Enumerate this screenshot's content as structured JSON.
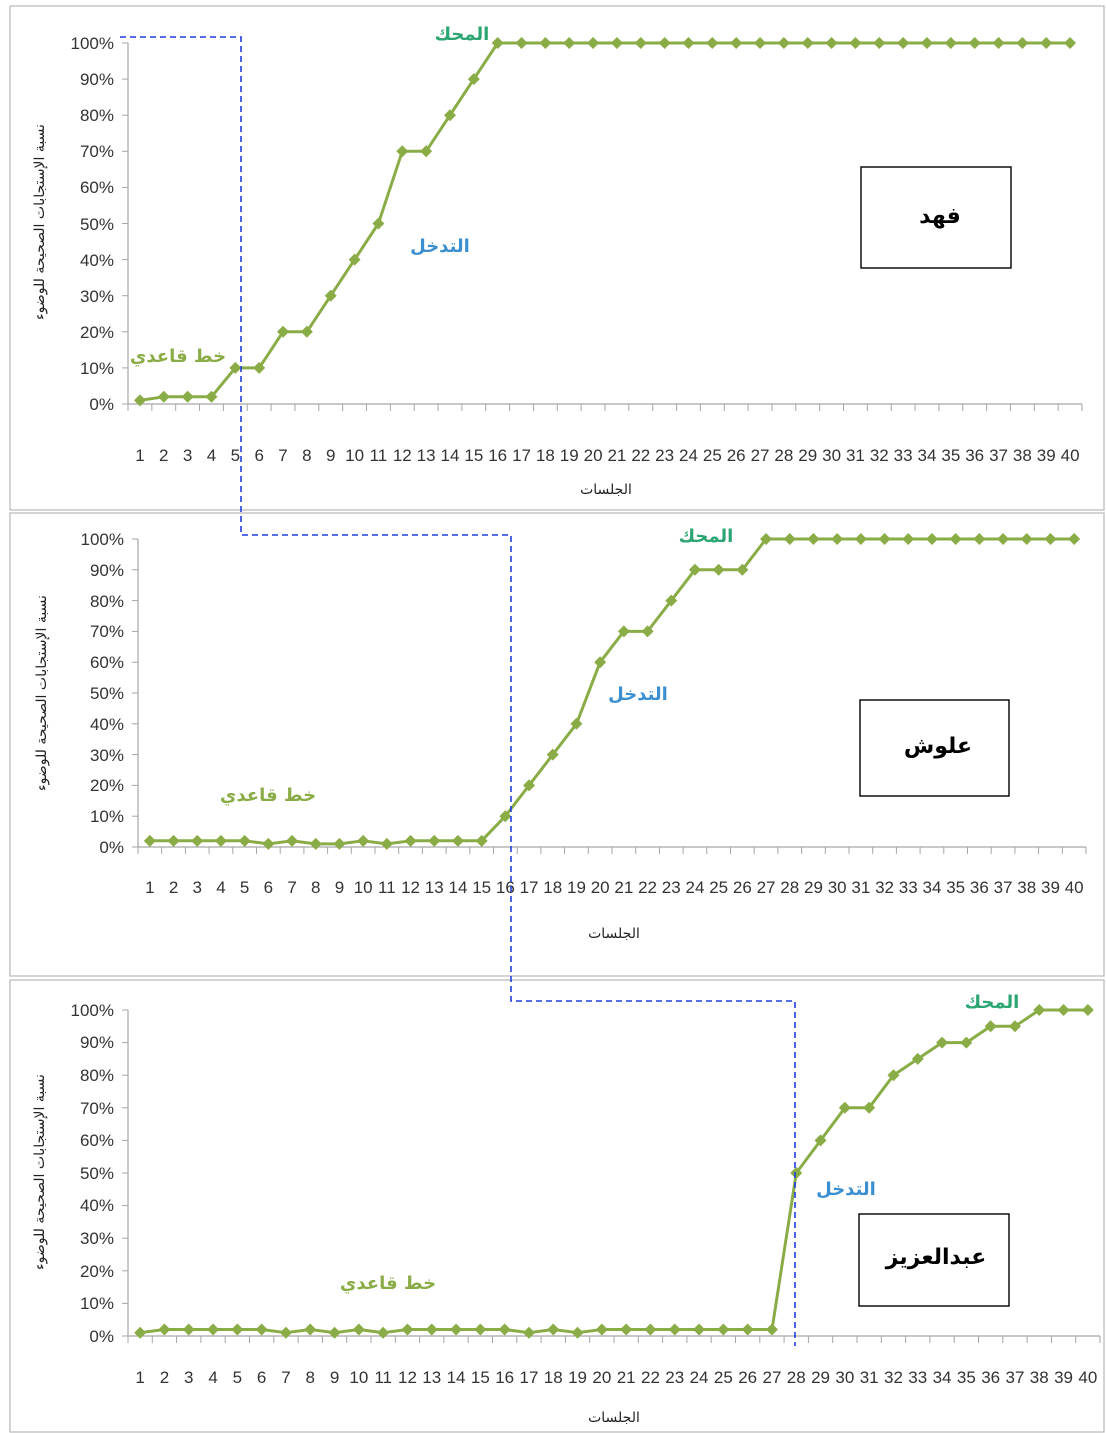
{
  "colors": {
    "series": "#8aac46",
    "phase_line": "#1f3fe0",
    "baseline_label": "#8aac46",
    "mastery_label": "#2ba672",
    "intervention_label": "#3b8fd0"
  },
  "chart_data": [
    {
      "type": "line",
      "name_box": "فهد",
      "ylabel": "نسبة الإستجابات الصحيحة للوضوء",
      "xlabel": "الجلسات",
      "ylim": [
        0,
        100
      ],
      "yticks": [
        "0%",
        "10%",
        "20%",
        "30%",
        "40%",
        "50%",
        "60%",
        "70%",
        "80%",
        "90%",
        "100%"
      ],
      "x": [
        1,
        2,
        3,
        4,
        5,
        6,
        7,
        8,
        9,
        10,
        11,
        12,
        13,
        14,
        15,
        16,
        17,
        18,
        19,
        20,
        21,
        22,
        23,
        24,
        25,
        26,
        27,
        28,
        29,
        30,
        31,
        32,
        33,
        34,
        35,
        36,
        37,
        38,
        39,
        40
      ],
      "values": [
        1,
        2,
        2,
        2,
        10,
        10,
        20,
        20,
        30,
        40,
        50,
        70,
        70,
        80,
        90,
        100,
        100,
        100,
        100,
        100,
        100,
        100,
        100,
        100,
        100,
        100,
        100,
        100,
        100,
        100,
        100,
        100,
        100,
        100,
        100,
        100,
        100,
        100,
        100,
        100
      ],
      "phase_labels": {
        "baseline": "خط قاعدي",
        "intervention": "التدخل",
        "mastery": "المحك"
      }
    },
    {
      "type": "line",
      "name_box": "علوش",
      "ylabel": "نسبة الإستجابات الصحيحة للوضوء",
      "xlabel": "الجلسات",
      "ylim": [
        0,
        100
      ],
      "yticks": [
        "0%",
        "10%",
        "20%",
        "30%",
        "40%",
        "50%",
        "60%",
        "70%",
        "80%",
        "90%",
        "100%"
      ],
      "x": [
        1,
        2,
        3,
        4,
        5,
        6,
        7,
        8,
        9,
        10,
        11,
        12,
        13,
        14,
        15,
        16,
        17,
        18,
        19,
        20,
        21,
        22,
        23,
        24,
        25,
        26,
        27,
        28,
        29,
        30,
        31,
        32,
        33,
        34,
        35,
        36,
        37,
        38,
        39,
        40
      ],
      "values": [
        2,
        2,
        2,
        2,
        2,
        1,
        2,
        1,
        1,
        2,
        1,
        2,
        2,
        2,
        2,
        10,
        20,
        30,
        40,
        60,
        70,
        70,
        80,
        90,
        90,
        90,
        100,
        100,
        100,
        100,
        100,
        100,
        100,
        100,
        100,
        100,
        100,
        100,
        100,
        100
      ],
      "phase_labels": {
        "baseline": "خط قاعدي",
        "intervention": "التدخل",
        "mastery": "المحك"
      }
    },
    {
      "type": "line",
      "name_box": "عبدالعزيز",
      "ylabel": "نسبة الإستجابات الصحيحة للوضوء",
      "xlabel": "الجلسات",
      "ylim": [
        0,
        100
      ],
      "yticks": [
        "0%",
        "10%",
        "20%",
        "30%",
        "40%",
        "50%",
        "60%",
        "70%",
        "80%",
        "90%",
        "100%"
      ],
      "x": [
        1,
        2,
        3,
        4,
        5,
        6,
        7,
        8,
        9,
        10,
        11,
        12,
        13,
        14,
        15,
        16,
        17,
        18,
        19,
        20,
        21,
        22,
        23,
        24,
        25,
        26,
        27,
        28,
        29,
        30,
        31,
        32,
        33,
        34,
        35,
        36,
        37,
        38,
        39,
        40
      ],
      "values": [
        1,
        2,
        2,
        2,
        2,
        2,
        1,
        2,
        1,
        2,
        1,
        2,
        2,
        2,
        2,
        2,
        1,
        2,
        1,
        2,
        2,
        2,
        2,
        2,
        2,
        2,
        2,
        50,
        60,
        70,
        70,
        80,
        85,
        90,
        90,
        95,
        95,
        100,
        100,
        100
      ],
      "phase_labels": {
        "baseline": "خط قاعدي",
        "intervention": "التدخل",
        "mastery": "المحك"
      }
    }
  ]
}
